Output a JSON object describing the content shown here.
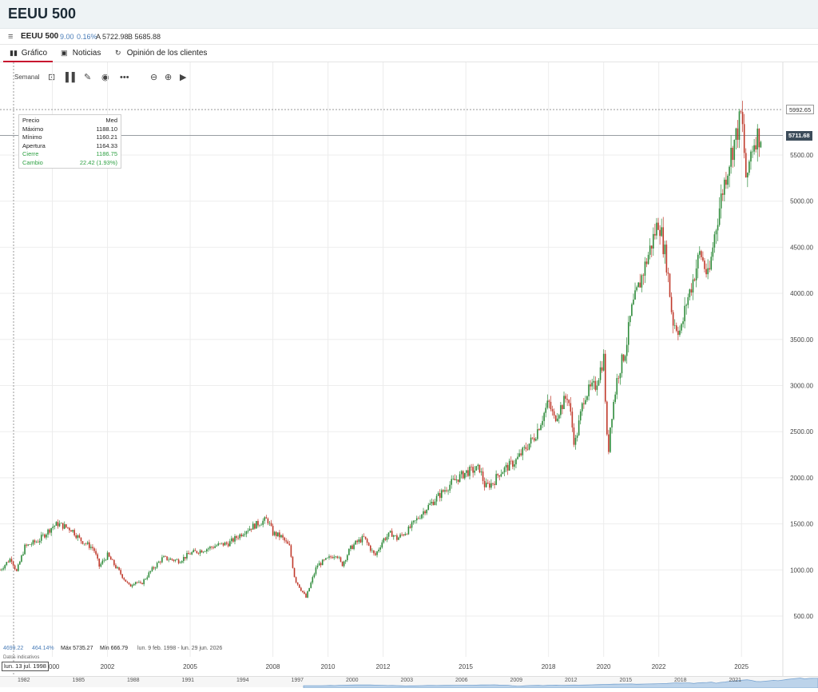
{
  "header": {
    "title": "EEUU 500"
  },
  "quote": {
    "symbol": "EEUU 500",
    "change": "9.00",
    "change_pct": "0.16%",
    "ask": "A 5722.98",
    "bid": "B 5685.88"
  },
  "tabs": [
    {
      "label": "Gráfico",
      "icon": "chart-icon",
      "active": true
    },
    {
      "label": "Noticias",
      "icon": "news-icon",
      "active": false
    },
    {
      "label": "Opinión de los clientes",
      "icon": "sentiment-icon",
      "active": false
    }
  ],
  "toolbar": {
    "interval": "Semanal"
  },
  "tooltip": {
    "header_left": "Precio",
    "header_right": "Med",
    "rows": [
      {
        "label": "Máximo",
        "value": "1188.10"
      },
      {
        "label": "Mínimo",
        "value": "1160.21"
      },
      {
        "label": "Apertura",
        "value": "1164.33"
      },
      {
        "label": "Cierre",
        "value": "1186.75"
      },
      {
        "label": "Cambio",
        "value": "22.42 (1.93%)"
      }
    ]
  },
  "tags": {
    "muted": "5992.65",
    "last": "5711.68"
  },
  "bottom": {
    "value": "4699.22",
    "pct": "464.14%",
    "max": "Máx 5735.27",
    "min": "Mín 666.79",
    "range": "lun. 9 feb. 1998 - lun. 29 jun. 2026",
    "note": "Datos indicativos",
    "cursor_date": "lun. 13 jul. 1998"
  },
  "colors": {
    "up": "#2e8b3a",
    "down": "#c0392b",
    "accent": "#c8102e"
  },
  "chart_data": {
    "type": "line",
    "title": "",
    "xlabel": "",
    "ylabel": "",
    "ylim": [
      0,
      6200
    ],
    "xlim": [
      1998.1,
      2026.5
    ],
    "y_ticks": [
      500,
      1000,
      1500,
      2000,
      2500,
      3000,
      3500,
      4000,
      4500,
      5000,
      5500
    ],
    "x_ticks": [
      "2000",
      "2002",
      "2005",
      "2008",
      "2010",
      "2012",
      "2015",
      "2018",
      "2020",
      "2022",
      "2025"
    ],
    "x": [
      1998.1,
      1998.5,
      1998.7,
      1999.0,
      1999.5,
      2000.0,
      2000.2,
      2000.7,
      2001.0,
      2001.5,
      2001.7,
      2002.0,
      2002.5,
      2002.8,
      2003.0,
      2003.2,
      2003.6,
      2004.0,
      2004.6,
      2005.0,
      2005.6,
      2006.0,
      2006.4,
      2006.8,
      2007.0,
      2007.5,
      2007.8,
      2008.0,
      2008.3,
      2008.6,
      2008.8,
      2009.2,
      2009.6,
      2010.0,
      2010.3,
      2010.5,
      2010.8,
      2011.0,
      2011.3,
      2011.7,
      2012.0,
      2012.3,
      2012.5,
      2012.9,
      2013.5,
      2014.0,
      2014.5,
      2015.0,
      2015.5,
      2015.7,
      2016.0,
      2016.2,
      2016.8,
      2017.5,
      2018.0,
      2018.2,
      2018.7,
      2018.95,
      2019.3,
      2019.7,
      2020.0,
      2020.15,
      2020.25,
      2020.5,
      2020.8,
      2021.0,
      2021.5,
      2022.0,
      2022.3,
      2022.5,
      2022.8,
      2023.0,
      2023.2,
      2023.5,
      2023.8,
      2024.0,
      2024.3,
      2024.6,
      2024.8,
      2025.0,
      2025.2,
      2025.3,
      2025.5,
      2025.7
    ],
    "series": [
      {
        "values": [
          1000,
          1130,
          980,
          1250,
          1320,
          1470,
          1500,
          1440,
          1330,
          1230,
          1040,
          1160,
          950,
          820,
          880,
          840,
          1000,
          1130,
          1100,
          1180,
          1230,
          1270,
          1290,
          1380,
          1430,
          1510,
          1550,
          1400,
          1360,
          1250,
          900,
          700,
          1050,
          1120,
          1180,
          1050,
          1230,
          1290,
          1350,
          1150,
          1330,
          1400,
          1340,
          1430,
          1650,
          1800,
          1950,
          2060,
          2100,
          1900,
          1950,
          2050,
          2180,
          2450,
          2820,
          2640,
          2900,
          2350,
          2900,
          3000,
          3300,
          2200,
          2600,
          3100,
          3400,
          3800,
          4300,
          4800,
          4300,
          3700,
          3580,
          3900,
          4100,
          4450,
          4150,
          4600,
          5100,
          5500,
          5700,
          5950,
          5100,
          5500,
          5700,
          5712
        ]
      }
    ]
  }
}
